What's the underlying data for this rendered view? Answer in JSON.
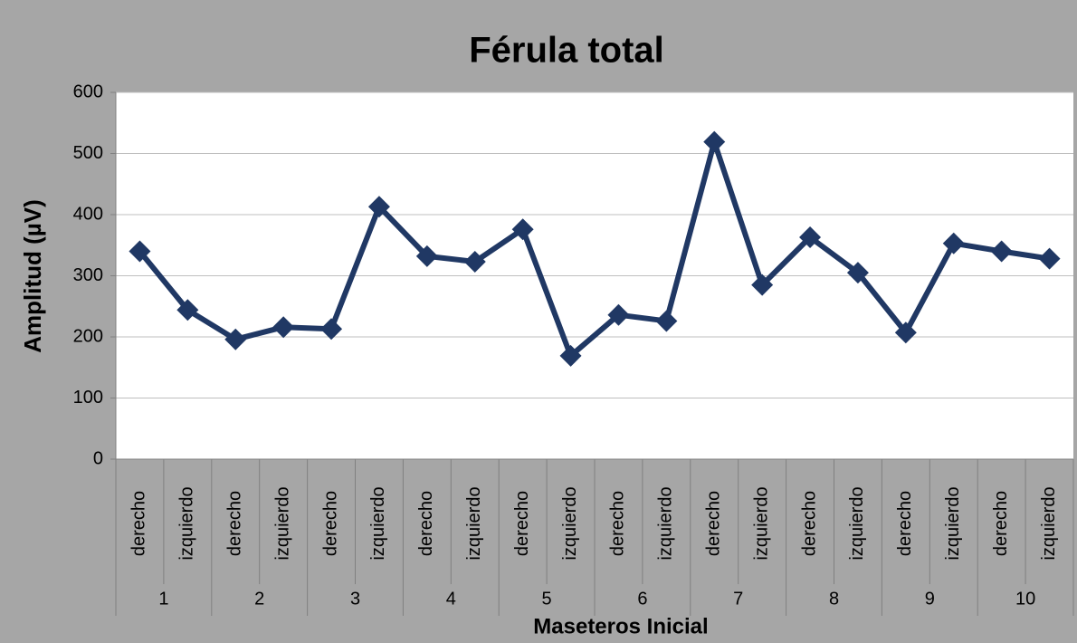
{
  "chart_data": {
    "type": "line",
    "title": "Férula total",
    "y_label": "Amplitud (µV)",
    "x_label": "Maseteros Inicial",
    "categories": [
      "derecho",
      "izquierdo",
      "derecho",
      "izquierdo",
      "derecho",
      "izquierdo",
      "derecho",
      "izquierdo",
      "derecho",
      "izquierdo",
      "derecho",
      "izquierdo",
      "derecho",
      "izquierdo",
      "derecho",
      "izquierdo",
      "derecho",
      "izquierdo",
      "derecho",
      "izquierdo"
    ],
    "groups": [
      1,
      2,
      3,
      4,
      5,
      6,
      7,
      8,
      9,
      10
    ],
    "values": [
      340,
      244,
      196,
      216,
      213,
      413,
      332,
      323,
      376,
      169,
      236,
      226,
      519,
      285,
      363,
      305,
      207,
      353,
      340,
      328
    ],
    "color": "#203864",
    "ylim": [
      0,
      600
    ],
    "yticks": [
      0,
      100,
      200,
      300,
      400,
      500,
      600
    ],
    "grid": true
  }
}
